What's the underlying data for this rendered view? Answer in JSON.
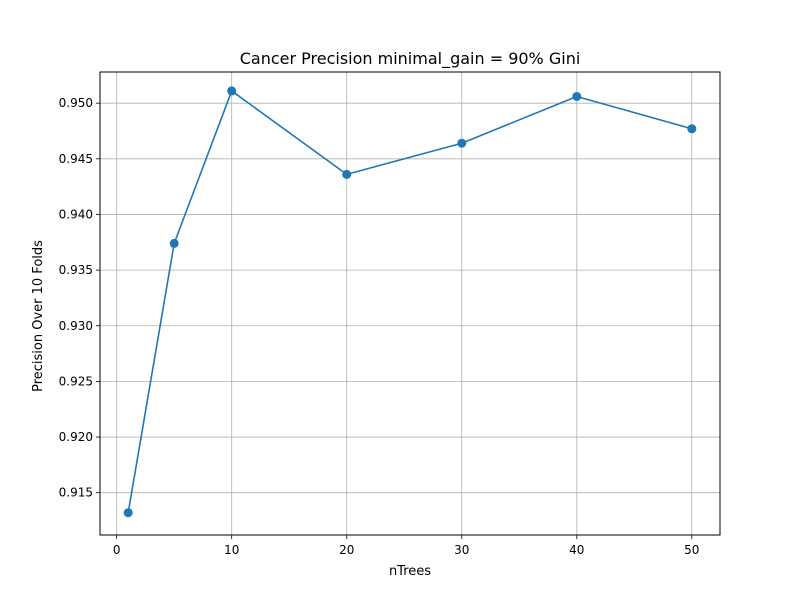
{
  "chart_data": {
    "type": "line",
    "title": "Cancer Precision minimal_gain = 90% Gini",
    "xlabel": "nTrees",
    "ylabel": "Precision Over 10 Folds",
    "xlim": [
      -1.45,
      52.45
    ],
    "ylim": [
      0.9112,
      0.9528
    ],
    "xticks": [
      0,
      10,
      20,
      30,
      40,
      50
    ],
    "xtick_labels": [
      "0",
      "10",
      "20",
      "30",
      "40",
      "50"
    ],
    "yticks": [
      0.915,
      0.92,
      0.925,
      0.93,
      0.935,
      0.94,
      0.945,
      0.95
    ],
    "ytick_labels": [
      "0.915",
      "0.920",
      "0.925",
      "0.930",
      "0.935",
      "0.940",
      "0.945",
      "0.950"
    ],
    "grid": true,
    "series": [
      {
        "color": "#1f77b4",
        "marker": "circle",
        "x": [
          1,
          5,
          10,
          20,
          30,
          40,
          50
        ],
        "y": [
          0.9132,
          0.9374,
          0.9511,
          0.9436,
          0.9464,
          0.9506,
          0.9477
        ]
      }
    ]
  }
}
